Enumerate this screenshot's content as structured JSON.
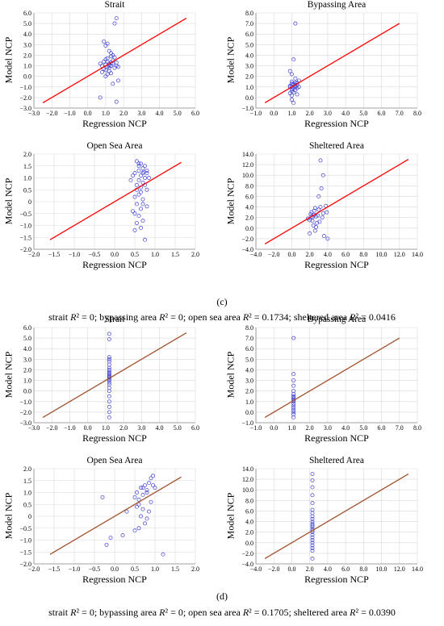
{
  "panels": [
    {
      "letter": "(c)",
      "caption_segments": [
        {
          "t": "strait ",
          "i": false
        },
        {
          "t": "R",
          "i": true
        },
        {
          "t": "² = 0; bypassing area ",
          "i": false
        },
        {
          "t": "R",
          "i": true
        },
        {
          "t": "² = 0; open sea area ",
          "i": false
        },
        {
          "t": "R",
          "i": true
        },
        {
          "t": "² = 0.1734; sheltered area ",
          "i": false
        },
        {
          "t": "R",
          "i": true
        },
        {
          "t": "² = 0.0416",
          "i": false
        }
      ],
      "line_color": "#ff0000"
    },
    {
      "letter": "(d)",
      "caption_segments": [
        {
          "t": "strait ",
          "i": false
        },
        {
          "t": "R",
          "i": true
        },
        {
          "t": "² = 0; bypassing area ",
          "i": false
        },
        {
          "t": "R",
          "i": true
        },
        {
          "t": "² = 0; open sea area ",
          "i": false
        },
        {
          "t": "R",
          "i": true
        },
        {
          "t": "² = 0.1705; sheltered area ",
          "i": false
        },
        {
          "t": "R",
          "i": true
        },
        {
          "t": "² = 0.0390",
          "i": false
        }
      ],
      "line_color": "#a0522d"
    }
  ],
  "point_color": "#4040d0",
  "chart_data": [
    {
      "type": "scatter",
      "panel": "c",
      "title": "Strait",
      "xlabel": "Regression NCP",
      "ylabel": "Model NCP",
      "xlim": [
        -3,
        6
      ],
      "ylim": [
        -3,
        6
      ],
      "xticks": [
        "−3.0",
        "−2.0",
        "−1.0",
        "0.0",
        "1.0",
        "2.0",
        "3.0",
        "4.0",
        "5.0",
        "6.0"
      ],
      "yticks": [
        "−3.0",
        "−2.0",
        "−1.0",
        "0.0",
        "1.0",
        "2.0",
        "3.0",
        "4.0",
        "5.0",
        "6.0"
      ],
      "reference_line": [
        [
          -2.5,
          -2.5
        ],
        [
          5.5,
          5.5
        ]
      ],
      "points": [
        [
          1.0,
          0.6
        ],
        [
          1.1,
          0.9
        ],
        [
          1.2,
          1.2
        ],
        [
          1.3,
          1.0
        ],
        [
          0.9,
          1.4
        ],
        [
          1.4,
          1.5
        ],
        [
          1.0,
          1.1
        ],
        [
          1.5,
          0.8
        ],
        [
          0.8,
          1.0
        ],
        [
          1.2,
          0.5
        ],
        [
          1.1,
          1.7
        ],
        [
          1.6,
          1.3
        ],
        [
          0.7,
          1.2
        ],
        [
          1.3,
          0.3
        ],
        [
          1.0,
          0.0
        ],
        [
          1.4,
          2.0
        ],
        [
          1.2,
          2.4
        ],
        [
          1.0,
          2.9
        ],
        [
          0.9,
          3.3
        ],
        [
          1.1,
          3.1
        ],
        [
          1.5,
          5.0
        ],
        [
          1.6,
          5.5
        ],
        [
          1.3,
          2.2
        ],
        [
          1.4,
          -0.7
        ],
        [
          1.6,
          -2.4
        ],
        [
          0.7,
          -2.0
        ],
        [
          1.7,
          -0.4
        ],
        [
          1.1,
          1.4
        ],
        [
          1.3,
          1.3
        ],
        [
          1.2,
          0.8
        ],
        [
          0.9,
          0.7
        ],
        [
          1.6,
          1.0
        ],
        [
          1.5,
          1.8
        ],
        [
          1.0,
          1.6
        ],
        [
          0.8,
          0.4
        ],
        [
          1.7,
          0.9
        ],
        [
          1.4,
          1.2
        ],
        [
          1.2,
          1.0
        ],
        [
          1.1,
          0.2
        ],
        [
          1.3,
          1.9
        ]
      ]
    },
    {
      "type": "scatter",
      "panel": "c",
      "title": "Bypassing Area",
      "xlabel": "Regression NCP",
      "ylabel": "Model NCP",
      "xlim": [
        -1,
        8
      ],
      "ylim": [
        -1,
        8
      ],
      "xticks": [
        "−1.0",
        "0.0",
        "1.0",
        "2.0",
        "3.0",
        "4.0",
        "5.0",
        "6.0",
        "7.0",
        "8.0"
      ],
      "yticks": [
        "−1.0",
        "0.0",
        "1.0",
        "2.0",
        "3.0",
        "4.0",
        "5.0",
        "6.0",
        "7.0",
        "8.0"
      ],
      "reference_line": [
        [
          -0.5,
          -0.5
        ],
        [
          7.0,
          7.0
        ]
      ],
      "points": [
        [
          1.0,
          0.2
        ],
        [
          1.1,
          0.5
        ],
        [
          1.0,
          0.8
        ],
        [
          1.2,
          1.0
        ],
        [
          0.9,
          1.1
        ],
        [
          1.3,
          1.2
        ],
        [
          1.1,
          1.3
        ],
        [
          1.0,
          1.5
        ],
        [
          1.2,
          0.7
        ],
        [
          1.4,
          1.0
        ],
        [
          0.9,
          0.4
        ],
        [
          1.0,
          -0.2
        ],
        [
          1.1,
          -0.5
        ],
        [
          1.2,
          1.8
        ],
        [
          1.0,
          2.2
        ],
        [
          1.1,
          3.6
        ],
        [
          1.2,
          7.0
        ],
        [
          1.3,
          1.4
        ],
        [
          1.0,
          1.0
        ],
        [
          1.1,
          0.9
        ],
        [
          1.4,
          1.6
        ],
        [
          0.9,
          2.5
        ],
        [
          1.2,
          1.1
        ],
        [
          1.0,
          0.6
        ],
        [
          1.3,
          0.3
        ],
        [
          1.1,
          1.2
        ],
        [
          1.2,
          1.4
        ],
        [
          1.0,
          1.3
        ],
        [
          0.9,
          1.0
        ],
        [
          1.3,
          0.9
        ]
      ]
    },
    {
      "type": "scatter",
      "panel": "c",
      "title": "Open Sea Area",
      "xlabel": "Regression NCP",
      "ylabel": "Model NCP",
      "xlim": [
        -2,
        2
      ],
      "ylim": [
        -2,
        2
      ],
      "xticks": [
        "−2.0",
        "−1.5",
        "−1.0",
        "−0.5",
        "0.0",
        "0.5",
        "1.0",
        "1.5",
        "2.0"
      ],
      "yticks": [
        "−2.0",
        "−1.5",
        "−1.0",
        "−0.5",
        "0",
        "0.5",
        "1.0",
        "1.5",
        "2.0"
      ],
      "reference_line": [
        [
          -1.6,
          -1.6
        ],
        [
          1.65,
          1.65
        ]
      ],
      "points": [
        [
          0.55,
          1.7
        ],
        [
          0.65,
          1.6
        ],
        [
          0.75,
          1.5
        ],
        [
          0.6,
          1.3
        ],
        [
          0.7,
          1.2
        ],
        [
          0.8,
          1.3
        ],
        [
          0.5,
          1.2
        ],
        [
          0.65,
          1.1
        ],
        [
          0.75,
          1.0
        ],
        [
          0.6,
          0.9
        ],
        [
          0.7,
          0.8
        ],
        [
          0.55,
          0.7
        ],
        [
          0.65,
          0.6
        ],
        [
          0.8,
          0.5
        ],
        [
          0.6,
          0.3
        ],
        [
          0.7,
          0.1
        ],
        [
          0.55,
          -0.1
        ],
        [
          0.65,
          -0.3
        ],
        [
          0.5,
          -0.5
        ],
        [
          0.6,
          -0.6
        ],
        [
          0.7,
          -0.8
        ],
        [
          0.55,
          -0.9
        ],
        [
          0.65,
          -1.1
        ],
        [
          0.5,
          -1.2
        ],
        [
          0.75,
          -1.6
        ],
        [
          0.45,
          1.1
        ],
        [
          0.8,
          1.2
        ],
        [
          0.4,
          0.9
        ],
        [
          0.85,
          1.0
        ],
        [
          0.7,
          1.4
        ],
        [
          0.6,
          1.5
        ],
        [
          0.75,
          0.7
        ],
        [
          0.5,
          0.2
        ],
        [
          0.65,
          0.4
        ],
        [
          0.8,
          -0.2
        ],
        [
          0.45,
          -0.4
        ],
        [
          0.7,
          -0.1
        ],
        [
          0.55,
          0.5
        ],
        [
          0.6,
          1.6
        ],
        [
          0.72,
          1.25
        ]
      ]
    },
    {
      "type": "scatter",
      "panel": "c",
      "title": "Sheltered Area",
      "xlabel": "Regression NCP",
      "ylabel": "Model NCP",
      "xlim": [
        -4,
        14
      ],
      "ylim": [
        -4,
        14
      ],
      "xticks": [
        "−4.0",
        "−2.0",
        "0.0",
        "2.0",
        "4.0",
        "6.0",
        "8.0",
        "10.0",
        "12.0",
        "14.0"
      ],
      "yticks": [
        "−4.0",
        "−2.0",
        "0.0",
        "2.0",
        "4.0",
        "6.0",
        "8.0",
        "10.0",
        "12.0",
        "14.0"
      ],
      "reference_line": [
        [
          -3.0,
          -3.0
        ],
        [
          13.0,
          13.0
        ]
      ],
      "points": [
        [
          2.0,
          1.5
        ],
        [
          2.3,
          2.0
        ],
        [
          2.5,
          2.5
        ],
        [
          2.2,
          3.0
        ],
        [
          2.7,
          2.2
        ],
        [
          3.0,
          3.5
        ],
        [
          3.2,
          4.0
        ],
        [
          2.8,
          1.0
        ],
        [
          2.4,
          0.5
        ],
        [
          2.6,
          -0.5
        ],
        [
          3.5,
          2.8
        ],
        [
          3.8,
          4.2
        ],
        [
          3.0,
          6.0
        ],
        [
          3.3,
          7.5
        ],
        [
          3.5,
          10.0
        ],
        [
          3.2,
          12.8
        ],
        [
          2.1,
          2.6
        ],
        [
          1.8,
          1.8
        ],
        [
          2.9,
          2.4
        ],
        [
          3.6,
          -1.5
        ],
        [
          4.0,
          -2.0
        ],
        [
          2.0,
          -1.0
        ],
        [
          3.1,
          1.2
        ],
        [
          2.6,
          3.8
        ],
        [
          2.3,
          1.4
        ],
        [
          3.4,
          2.0
        ],
        [
          2.7,
          0.2
        ],
        [
          2.5,
          3.3
        ],
        [
          3.9,
          3.0
        ],
        [
          2.2,
          2.2
        ]
      ]
    },
    {
      "type": "scatter",
      "panel": "d",
      "title": "Strait",
      "xlabel": "Regression NCP",
      "ylabel": "Model NCP",
      "xlim": [
        -3,
        6
      ],
      "ylim": [
        -3,
        6
      ],
      "xticks": [
        "−3.0",
        "−2.0",
        "−1.0",
        "0.0",
        "1.0",
        "2.0",
        "3.0",
        "4.0",
        "5.0",
        "6.0"
      ],
      "yticks": [
        "−3.0",
        "−2.0",
        "−1.0",
        "0.0",
        "1.0",
        "2.0",
        "3.0",
        "4.0",
        "5.0",
        "6.0"
      ],
      "reference_line": [
        [
          -2.5,
          -2.5
        ],
        [
          5.5,
          5.5
        ]
      ],
      "points": [
        [
          1.2,
          -2.5
        ],
        [
          1.2,
          -2.0
        ],
        [
          1.2,
          -1.5
        ],
        [
          1.2,
          -1.0
        ],
        [
          1.2,
          -0.5
        ],
        [
          1.2,
          0.0
        ],
        [
          1.2,
          0.3
        ],
        [
          1.2,
          0.6
        ],
        [
          1.2,
          0.8
        ],
        [
          1.2,
          1.0
        ],
        [
          1.2,
          1.1
        ],
        [
          1.2,
          1.2
        ],
        [
          1.2,
          1.3
        ],
        [
          1.2,
          1.4
        ],
        [
          1.2,
          1.5
        ],
        [
          1.2,
          1.6
        ],
        [
          1.2,
          1.7
        ],
        [
          1.2,
          1.8
        ],
        [
          1.2,
          2.0
        ],
        [
          1.2,
          2.2
        ],
        [
          1.2,
          2.5
        ],
        [
          1.2,
          2.8
        ],
        [
          1.2,
          3.0
        ],
        [
          1.2,
          3.2
        ],
        [
          1.2,
          4.9
        ],
        [
          1.2,
          5.4
        ]
      ]
    },
    {
      "type": "scatter",
      "panel": "d",
      "title": "Bypassing Area",
      "xlabel": "Regression NCP",
      "ylabel": "Model NCP",
      "xlim": [
        -1,
        8
      ],
      "ylim": [
        -1,
        8
      ],
      "xticks": [
        "−1.0",
        "0.0",
        "1.0",
        "2.0",
        "3.0",
        "4.0",
        "5.0",
        "6.0",
        "7.0",
        "8.0"
      ],
      "yticks": [
        "−1.0",
        "0.0",
        "1.0",
        "2.0",
        "3.0",
        "4.0",
        "5.0",
        "6.0",
        "7.0",
        "8.0"
      ],
      "reference_line": [
        [
          -0.5,
          -0.5
        ],
        [
          7.0,
          7.0
        ]
      ],
      "points": [
        [
          1.1,
          -0.5
        ],
        [
          1.1,
          -0.2
        ],
        [
          1.1,
          0.0
        ],
        [
          1.1,
          0.2
        ],
        [
          1.1,
          0.4
        ],
        [
          1.1,
          0.6
        ],
        [
          1.1,
          0.8
        ],
        [
          1.1,
          1.0
        ],
        [
          1.1,
          1.1
        ],
        [
          1.1,
          1.2
        ],
        [
          1.1,
          1.3
        ],
        [
          1.1,
          1.4
        ],
        [
          1.1,
          1.5
        ],
        [
          1.1,
          1.7
        ],
        [
          1.1,
          2.0
        ],
        [
          1.1,
          2.5
        ],
        [
          1.1,
          3.0
        ],
        [
          1.1,
          3.6
        ],
        [
          1.1,
          7.0
        ]
      ]
    },
    {
      "type": "scatter",
      "panel": "d",
      "title": "Open Sea Area",
      "xlabel": "Regression NCP",
      "ylabel": "Model NCP",
      "xlim": [
        -2,
        2
      ],
      "ylim": [
        -2,
        2
      ],
      "xticks": [
        "−2.0",
        "−1.5",
        "−1.0",
        "−0.5",
        "0.0",
        "0.5",
        "1.0",
        "1.5",
        "2.0"
      ],
      "yticks": [
        "−2.0",
        "−1.5",
        "−1.0",
        "−0.5",
        "0",
        "0.5",
        "1.0",
        "1.5",
        "2.0"
      ],
      "reference_line": [
        [
          -1.6,
          -1.6
        ],
        [
          1.65,
          1.65
        ]
      ],
      "points": [
        [
          -0.2,
          -1.2
        ],
        [
          -0.1,
          -0.9
        ],
        [
          0.2,
          -0.8
        ],
        [
          0.3,
          0.2
        ],
        [
          -0.3,
          0.8
        ],
        [
          0.5,
          0.8
        ],
        [
          0.6,
          0.7
        ],
        [
          0.7,
          0.9
        ],
        [
          0.8,
          1.1
        ],
        [
          0.65,
          1.2
        ],
        [
          0.75,
          1.3
        ],
        [
          0.85,
          1.4
        ],
        [
          0.9,
          1.6
        ],
        [
          0.95,
          1.7
        ],
        [
          1.0,
          1.2
        ],
        [
          0.55,
          1.0
        ],
        [
          0.6,
          0.5
        ],
        [
          0.7,
          0.3
        ],
        [
          0.65,
          0.0
        ],
        [
          0.8,
          -0.1
        ],
        [
          0.75,
          -0.3
        ],
        [
          0.6,
          -0.5
        ],
        [
          0.5,
          -0.6
        ],
        [
          0.9,
          0.6
        ],
        [
          0.85,
          0.2
        ],
        [
          1.2,
          -1.6
        ],
        [
          0.7,
          1.2
        ],
        [
          0.8,
          1.0
        ],
        [
          0.95,
          1.3
        ],
        [
          0.55,
          0.4
        ]
      ]
    },
    {
      "type": "scatter",
      "panel": "d",
      "title": "Sheltered Area",
      "xlabel": "Regression NCP",
      "ylabel": "Model NCP",
      "xlim": [
        -4,
        14
      ],
      "ylim": [
        -4,
        14
      ],
      "xticks": [
        "−4.0",
        "−2.0",
        "0.0",
        "2.0",
        "4.0",
        "6.0",
        "8.0",
        "10.0",
        "12.0",
        "14.0"
      ],
      "yticks": [
        "−4.0",
        "−2.0",
        "0.0",
        "2.0",
        "4.0",
        "6.0",
        "8.0",
        "10.0",
        "12.0",
        "14.0"
      ],
      "reference_line": [
        [
          -3.0,
          -3.0
        ],
        [
          13.0,
          13.0
        ]
      ],
      "points": [
        [
          2.3,
          -3.0
        ],
        [
          2.3,
          -1.5
        ],
        [
          2.3,
          -1.0
        ],
        [
          2.3,
          -0.5
        ],
        [
          2.3,
          0.0
        ],
        [
          2.3,
          0.5
        ],
        [
          2.3,
          1.0
        ],
        [
          2.3,
          1.5
        ],
        [
          2.3,
          2.0
        ],
        [
          2.3,
          2.3
        ],
        [
          2.3,
          2.6
        ],
        [
          2.3,
          3.0
        ],
        [
          2.3,
          3.3
        ],
        [
          2.3,
          3.6
        ],
        [
          2.3,
          4.0
        ],
        [
          2.3,
          4.5
        ],
        [
          2.3,
          5.0
        ],
        [
          2.3,
          5.6
        ],
        [
          2.3,
          6.2
        ],
        [
          2.3,
          7.5
        ],
        [
          2.3,
          9.0
        ],
        [
          2.3,
          10.5
        ],
        [
          2.3,
          11.8
        ],
        [
          2.3,
          13.0
        ]
      ]
    }
  ]
}
